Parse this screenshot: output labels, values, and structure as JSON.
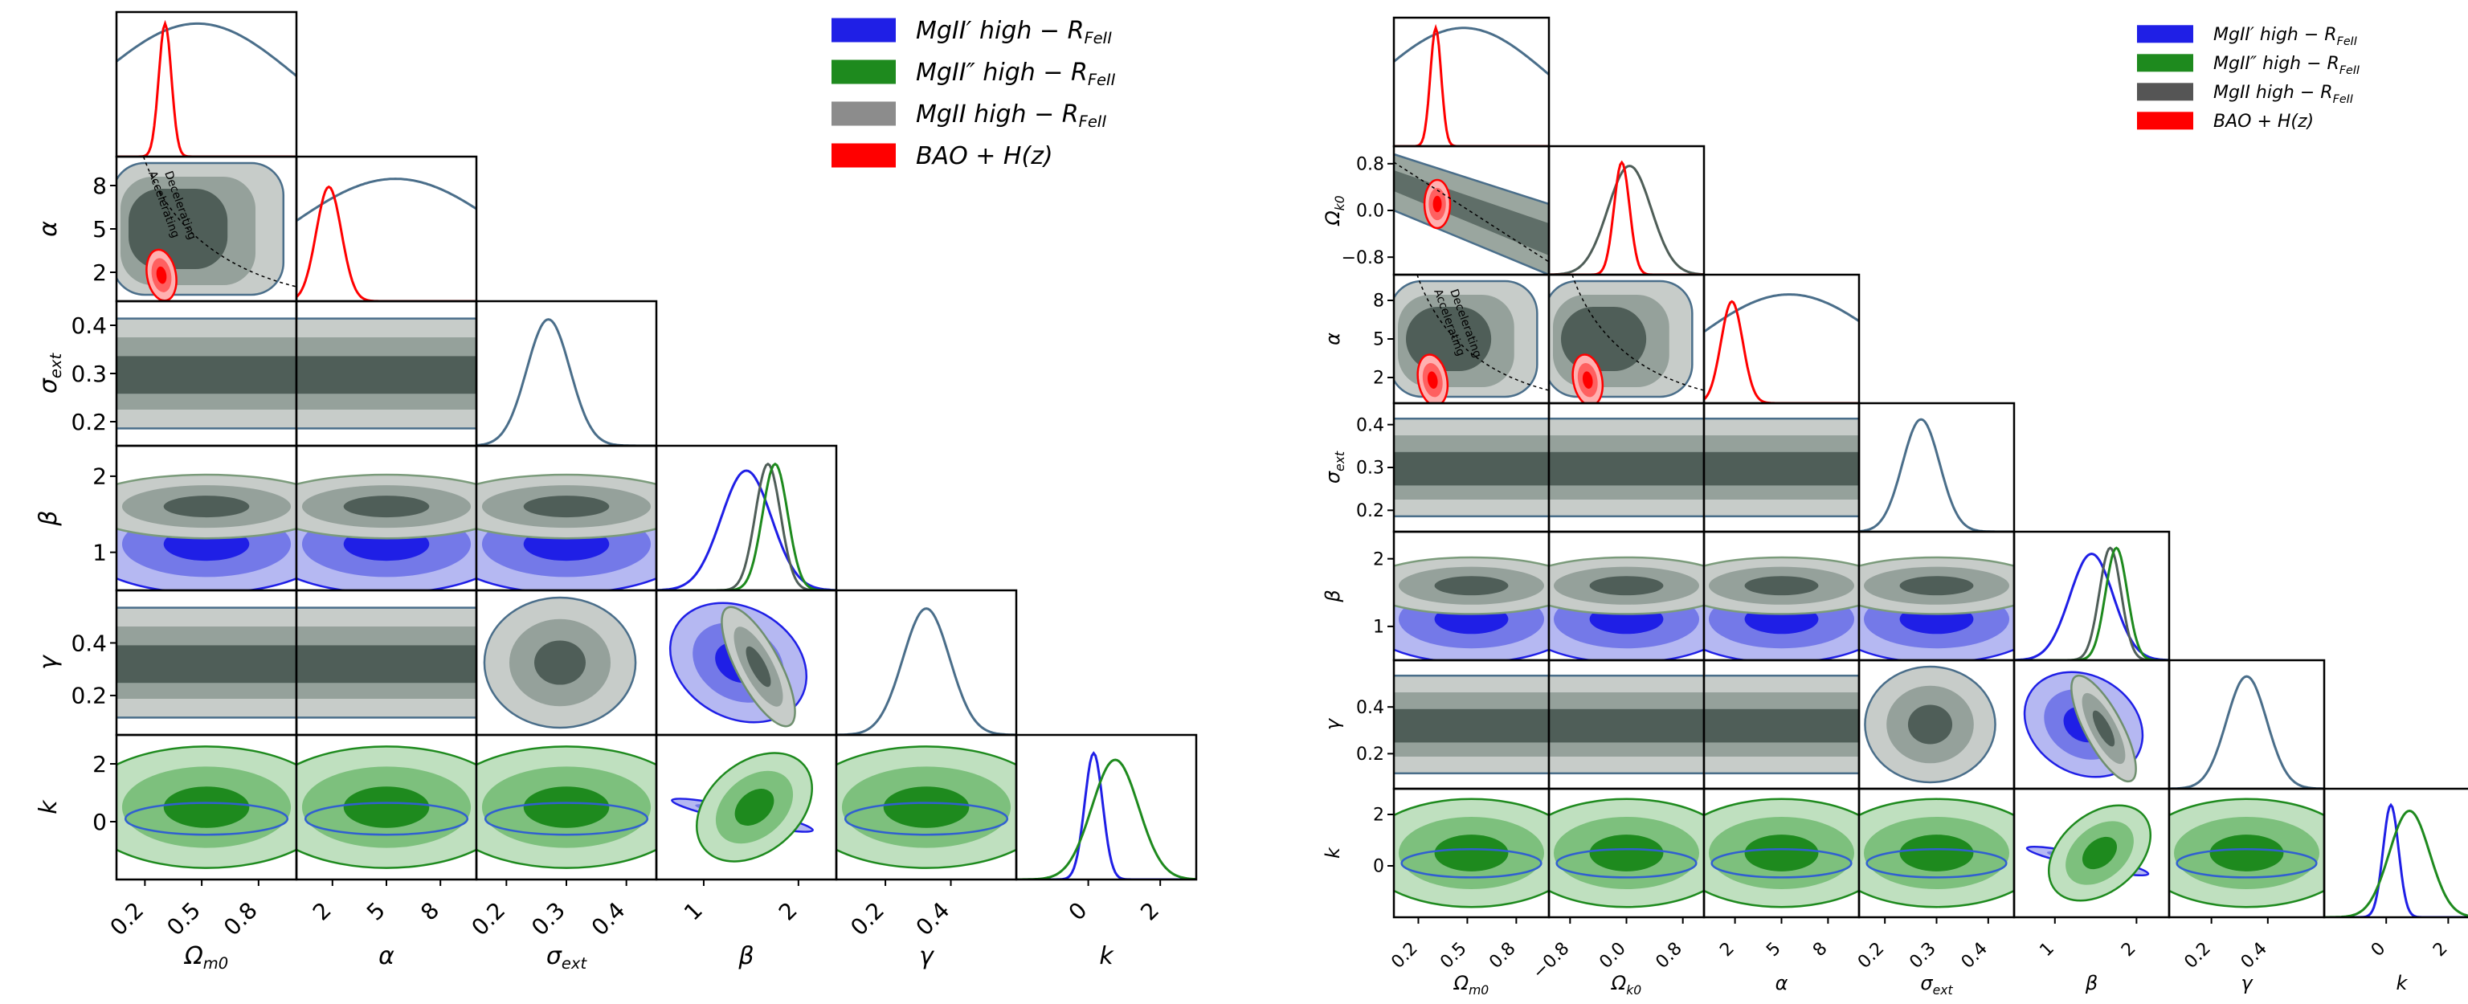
{
  "colors": {
    "blue": "#1f1fe6",
    "green": "#1e8a1e",
    "grey": "#4f5e58",
    "red": "#ff0000",
    "outline": "#4a6e8a"
  },
  "chart_data": [
    {
      "type": "corner",
      "title": "",
      "params": [
        {
          "label": "Ωm0",
          "sub": "m0",
          "sym": "Ω",
          "range": [
            0.05,
            1.0
          ],
          "ticks": [
            "0.2",
            "0.5",
            "0.8"
          ],
          "tickvals": [
            0.2,
            0.5,
            0.8
          ]
        },
        {
          "label": "α",
          "sub": "",
          "sym": "α",
          "range": [
            0.0,
            10.0
          ],
          "ticks": [
            "2",
            "5",
            "8"
          ],
          "tickvals": [
            2,
            5,
            8
          ]
        },
        {
          "label": "σext",
          "sub": "ext",
          "sym": "σ",
          "range": [
            0.15,
            0.45
          ],
          "ticks": [
            "0.2",
            "0.3",
            "0.4"
          ],
          "tickvals": [
            0.2,
            0.3,
            0.4
          ]
        },
        {
          "label": "β",
          "sub": "",
          "sym": "β",
          "range": [
            0.5,
            2.4
          ],
          "ticks": [
            "1",
            "2"
          ],
          "tickvals": [
            1,
            2
          ]
        },
        {
          "label": "γ",
          "sub": "",
          "sym": "γ",
          "range": [
            0.05,
            0.6
          ],
          "ticks": [
            "0.2",
            "0.4"
          ],
          "tickvals": [
            0.2,
            0.4
          ]
        },
        {
          "label": "k",
          "sub": "",
          "sym": "k",
          "range": [
            -2.0,
            3.0
          ],
          "ticks": [
            "0",
            "2"
          ],
          "tickvals": [
            0,
            2
          ]
        }
      ],
      "legend": [
        {
          "name": "MgII′ high − R_FeII",
          "base": "MgII′ high − R",
          "sub": "FeII",
          "color": "#1f1fe6"
        },
        {
          "name": "MgII″ high − R_FeII",
          "base": "MgII″ high − R",
          "sub": "FeII",
          "color": "#1e8a1e"
        },
        {
          "name": "MgII high − R_FeII",
          "base": "MgII high − R",
          "sub": "FeII",
          "color": "#8c8c8c"
        },
        {
          "name": "BAO + H(z)",
          "base": "BAO + H(z)",
          "sub": "",
          "color": "#ff0000"
        }
      ],
      "annotations": [
        "Accelerating",
        "Decelerating"
      ]
    },
    {
      "type": "corner",
      "title": "",
      "params": [
        {
          "label": "Ωm0",
          "sub": "m0",
          "sym": "Ω",
          "range": [
            0.05,
            1.0
          ],
          "ticks": [
            "0.2",
            "0.5",
            "0.8"
          ],
          "tickvals": [
            0.2,
            0.5,
            0.8
          ]
        },
        {
          "label": "Ωk0",
          "sub": "k0",
          "sym": "Ω",
          "range": [
            -1.1,
            1.1
          ],
          "ticks": [
            "−0.8",
            "0.0",
            "0.8"
          ],
          "tickvals": [
            -0.8,
            0.0,
            0.8
          ]
        },
        {
          "label": "α",
          "sub": "",
          "sym": "α",
          "range": [
            0.0,
            10.0
          ],
          "ticks": [
            "2",
            "5",
            "8"
          ],
          "tickvals": [
            2,
            5,
            8
          ]
        },
        {
          "label": "σext",
          "sub": "ext",
          "sym": "σ",
          "range": [
            0.15,
            0.45
          ],
          "ticks": [
            "0.2",
            "0.3",
            "0.4"
          ],
          "tickvals": [
            0.2,
            0.3,
            0.4
          ]
        },
        {
          "label": "β",
          "sub": "",
          "sym": "β",
          "range": [
            0.5,
            2.4
          ],
          "ticks": [
            "1",
            "2"
          ],
          "tickvals": [
            1,
            2
          ]
        },
        {
          "label": "γ",
          "sub": "",
          "sym": "γ",
          "range": [
            0.05,
            0.6
          ],
          "ticks": [
            "0.2",
            "0.4"
          ],
          "tickvals": [
            0.2,
            0.4
          ]
        },
        {
          "label": "k",
          "sub": "",
          "sym": "k",
          "range": [
            -2.0,
            3.0
          ],
          "ticks": [
            "0",
            "2"
          ],
          "tickvals": [
            0,
            2
          ]
        }
      ],
      "legend": [
        {
          "name": "MgII′ high − R_FeII",
          "base": "MgII′ high − R",
          "sub": "FeII",
          "color": "#1f1fe6"
        },
        {
          "name": "MgII″ high − R_FeII",
          "base": "MgII″ high − R",
          "sub": "FeII",
          "color": "#1e8a1e"
        },
        {
          "name": "MgII high − R_FeII",
          "base": "MgII high − R",
          "sub": "FeII",
          "color": "#555555"
        },
        {
          "name": "BAO + H(z)",
          "base": "BAO + H(z)",
          "sub": "",
          "color": "#ff0000"
        }
      ],
      "annotations": [
        "Accelerating",
        "Decelerating"
      ]
    }
  ]
}
